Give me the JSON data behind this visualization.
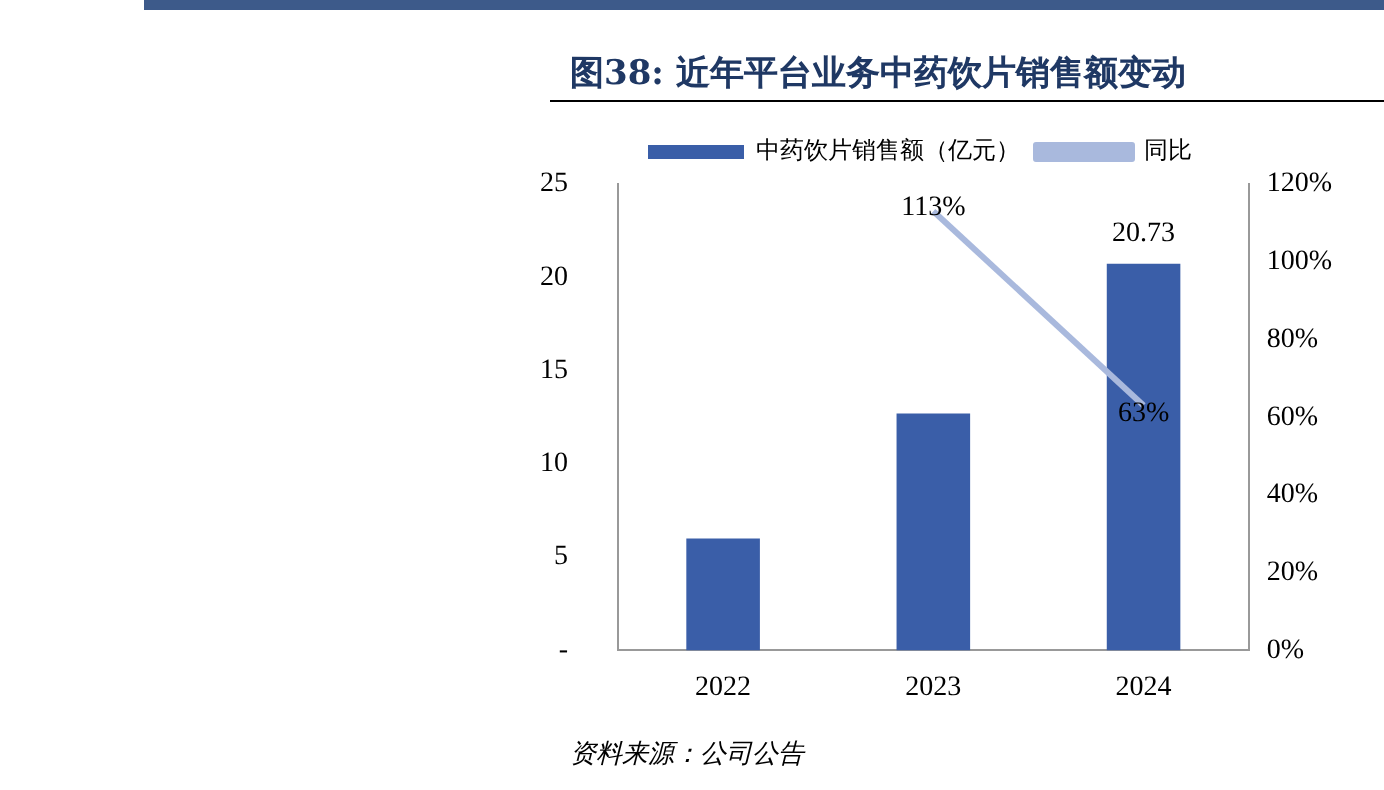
{
  "chart_data": {
    "type": "bar",
    "title": "图38: 近年平台业务中药饮片销售额变动",
    "annotations": [
      "资料来源：公司公告"
    ],
    "categories": [
      "2022",
      "2023",
      "2024"
    ],
    "series": [
      {
        "name": "中药饮片销售额（亿元）",
        "color": "#3a5ea8",
        "values": [
          6.0,
          12.7,
          20.73
        ],
        "value_labels": [
          null,
          null,
          "20.73"
        ]
      },
      {
        "name": "同比",
        "type": "line",
        "axis": "y2",
        "color": "#a9b9dd",
        "values": [
          null,
          113,
          63
        ],
        "value_labels": [
          null,
          "113%",
          "63%"
        ]
      }
    ],
    "ylim": [
      0,
      25
    ],
    "yticks": [
      {
        "value": 0,
        "label": "-"
      },
      5,
      10,
      15,
      20,
      25
    ],
    "y2lim": [
      0,
      120
    ],
    "y2ticks": [
      {
        "value": 0,
        "label": "0%"
      },
      {
        "value": 20,
        "label": "20%"
      },
      {
        "value": 40,
        "label": "40%"
      },
      {
        "value": 60,
        "label": "60%"
      },
      {
        "value": 80,
        "label": "80%"
      },
      {
        "value": 100,
        "label": "100%"
      },
      {
        "value": 120,
        "label": "120%"
      }
    ],
    "legend": "top",
    "marker": "none"
  }
}
